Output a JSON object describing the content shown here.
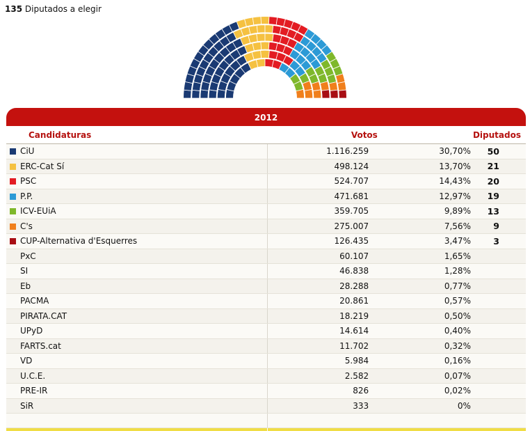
{
  "header": {
    "seats_total": "135",
    "seats_label": "Diputados a elegir"
  },
  "year": "2012",
  "columns": {
    "candidaturas": "Candidaturas",
    "votos": "Votos",
    "diputados": "Diputados"
  },
  "parties": [
    {
      "name": "CiU",
      "votes": "1.116.259",
      "pct": "30,70%",
      "seats": "50",
      "seat_count": 50,
      "color": "#1a3a73"
    },
    {
      "name": "ERC-Cat Sí",
      "votes": "498.124",
      "pct": "13,70%",
      "seats": "21",
      "seat_count": 21,
      "color": "#f5c141"
    },
    {
      "name": "PSC",
      "votes": "524.707",
      "pct": "14,43%",
      "seats": "20",
      "seat_count": 20,
      "color": "#e31c23"
    },
    {
      "name": "P.P.",
      "votes": "471.681",
      "pct": "12,97%",
      "seats": "19",
      "seat_count": 19,
      "color": "#2c9ad6"
    },
    {
      "name": "ICV-EUiA",
      "votes": "359.705",
      "pct": "9,89%",
      "seats": "13",
      "seat_count": 13,
      "color": "#7fb82b"
    },
    {
      "name": "C's",
      "votes": "275.007",
      "pct": "7,56%",
      "seats": "9",
      "seat_count": 9,
      "color": "#f07f1c"
    },
    {
      "name": "CUP-Alternativa d'Esquerres",
      "votes": "126.435",
      "pct": "3,47%",
      "seats": "3",
      "seat_count": 3,
      "color": "#a80e14"
    },
    {
      "name": "PxC",
      "votes": "60.107",
      "pct": "1,65%",
      "seats": ""
    },
    {
      "name": "SI",
      "votes": "46.838",
      "pct": "1,28%",
      "seats": ""
    },
    {
      "name": "Eb",
      "votes": "28.288",
      "pct": "0,77%",
      "seats": ""
    },
    {
      "name": "PACMA",
      "votes": "20.861",
      "pct": "0,57%",
      "seats": ""
    },
    {
      "name": "PIRATA.CAT",
      "votes": "18.219",
      "pct": "0,50%",
      "seats": ""
    },
    {
      "name": "UPyD",
      "votes": "14.614",
      "pct": "0,40%",
      "seats": ""
    },
    {
      "name": "FARTS.cat",
      "votes": "11.702",
      "pct": "0,32%",
      "seats": ""
    },
    {
      "name": "VD",
      "votes": "5.984",
      "pct": "0,16%",
      "seats": ""
    },
    {
      "name": "U.C.E.",
      "votes": "2.582",
      "pct": "0,07%",
      "seats": ""
    },
    {
      "name": "PRE-IR",
      "votes": "826",
      "pct": "0,02%",
      "seats": ""
    },
    {
      "name": "SiR",
      "votes": "333",
      "pct": "0%",
      "seats": ""
    }
  ]
}
